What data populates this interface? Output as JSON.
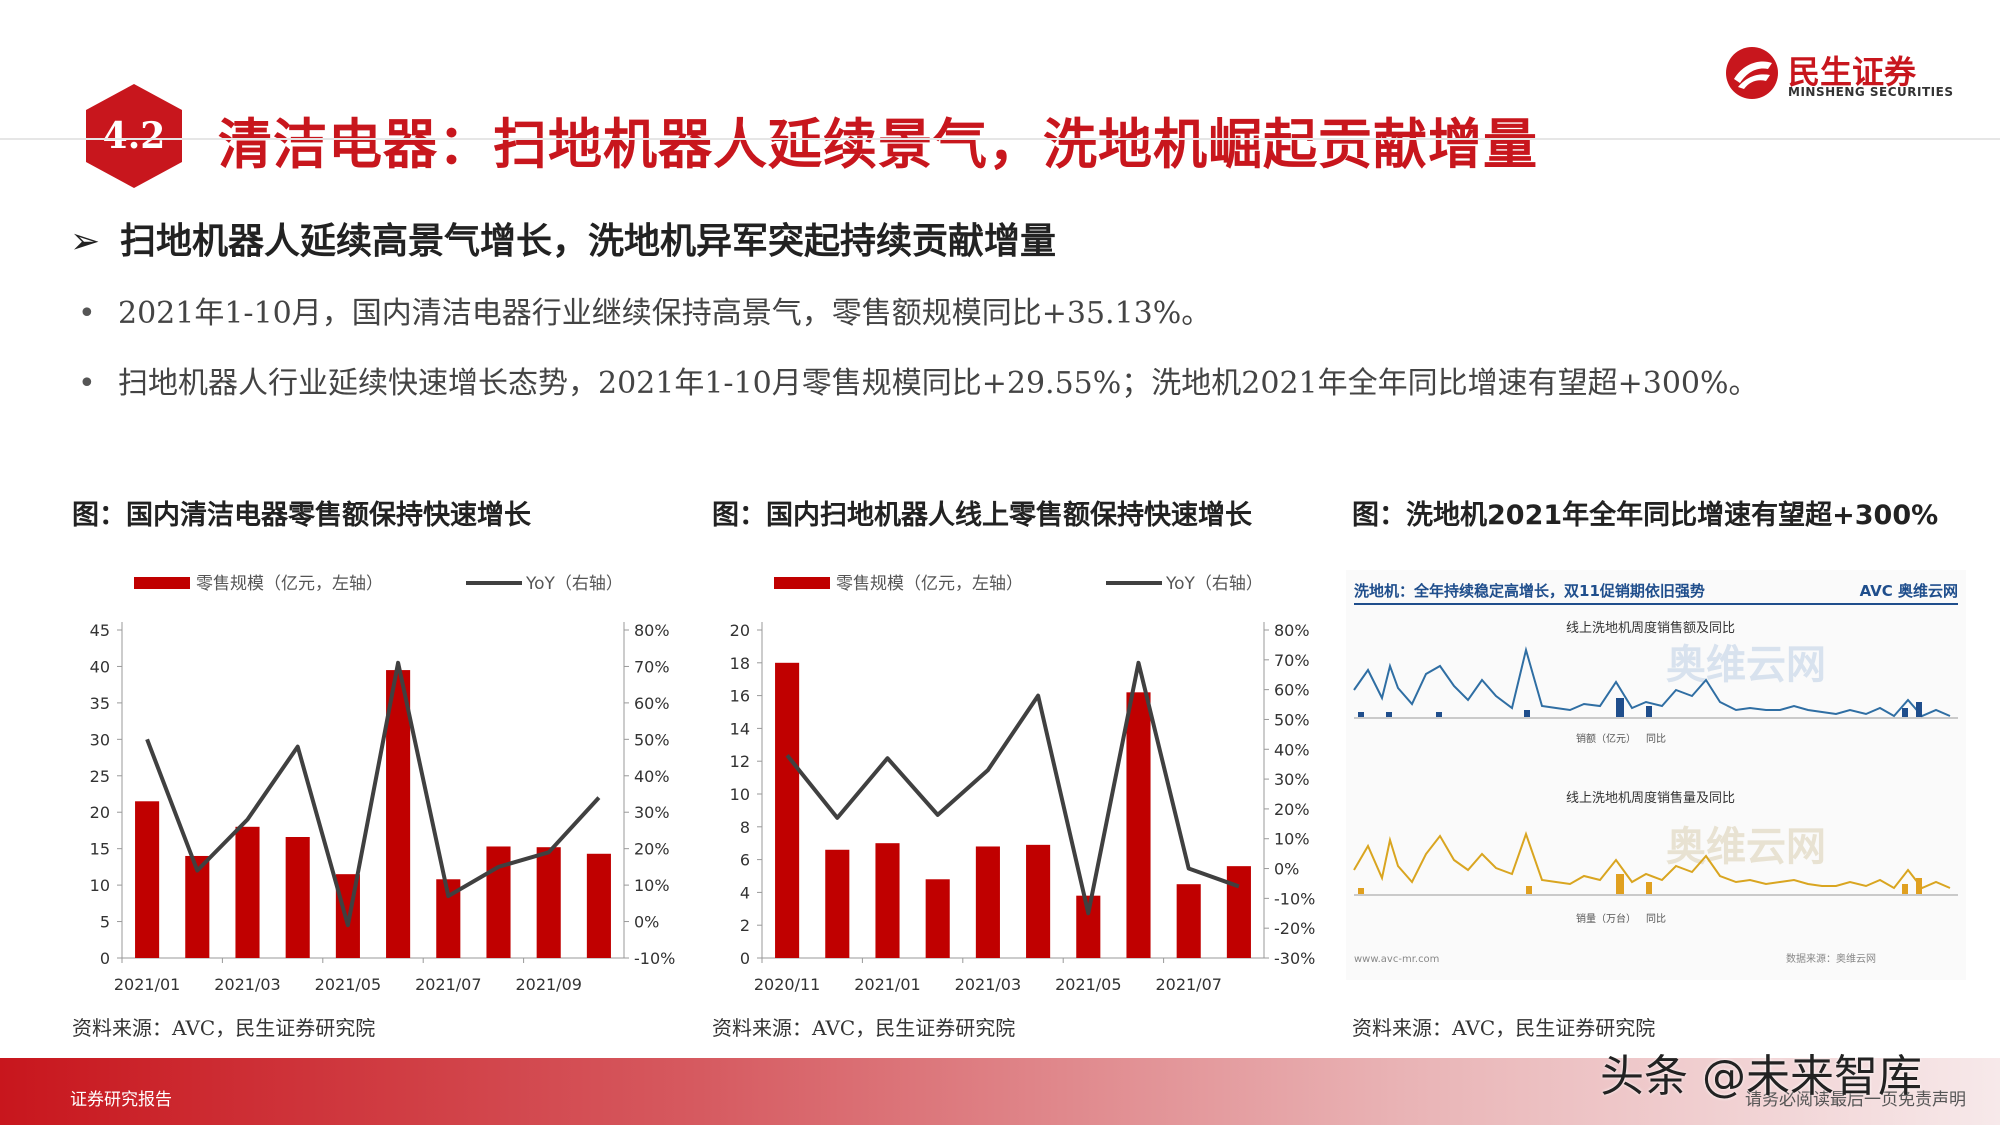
{
  "header": {
    "section_number": "4.2",
    "title": "清洁电器：扫地机器人延续景气，洗地机崛起贡献增量",
    "logo_cn": "民生证券",
    "logo_en": "MINSHENG SECURITIES"
  },
  "subheading": "扫地机器人延续高景气增长，洗地机异军突起持续贡献增量",
  "bullets": [
    "2021年1-10月，国内清洁电器行业继续保持高景气，零售额规模同比+35.13%。",
    "扫地机器人行业延续快速增长态势，2021年1-10月零售规模同比+29.55%；洗地机2021年全年同比增速有望超+300%。"
  ],
  "figures": [
    {
      "caption": "图：国内清洁电器零售额保持快速增长",
      "source": "资料来源：AVC，民生证券研究院"
    },
    {
      "caption": "图：国内扫地机器人线上零售额保持快速增长",
      "source": "资料来源：AVC，民生证券研究院"
    },
    {
      "caption": "图：洗地机2021年全年同比增速有望超+300%",
      "source": "资料来源：AVC，民生证券研究院"
    }
  ],
  "chart_data": [
    {
      "type": "bar",
      "legend": [
        "零售规模（亿元，左轴）",
        "YoY（右轴）"
      ],
      "x_tick_labels": [
        "2021/01",
        "2021/03",
        "2021/05",
        "2021/07",
        "2021/09"
      ],
      "categories": [
        "2021/01",
        "2021/02",
        "2021/03",
        "2021/04",
        "2021/05",
        "2021/06",
        "2021/07",
        "2021/08",
        "2021/09",
        "2021/10"
      ],
      "series": [
        {
          "name": "零售规模（亿元，左轴）",
          "axis": "left",
          "type": "bar",
          "values": [
            21.5,
            14,
            18,
            16.6,
            11.5,
            39.5,
            10.8,
            15.3,
            15.2,
            14.3
          ]
        },
        {
          "name": "YoY（右轴）",
          "axis": "right",
          "type": "line",
          "values": [
            50,
            14,
            28,
            48,
            -1,
            71,
            7,
            15,
            19,
            34
          ]
        }
      ],
      "y_left": {
        "min": 0,
        "max": 45,
        "ticks": [
          0,
          5,
          10,
          15,
          20,
          25,
          30,
          35,
          40,
          45
        ]
      },
      "y_right": {
        "min": -10,
        "max": 80,
        "ticks": [
          "-10%",
          "0%",
          "10%",
          "20%",
          "30%",
          "40%",
          "50%",
          "60%",
          "70%",
          "80%"
        ]
      },
      "colors": {
        "bar": "#c00000",
        "line": "#404040"
      }
    },
    {
      "type": "bar",
      "legend": [
        "零售规模（亿元，左轴）",
        "YoY（右轴）"
      ],
      "x_tick_labels": [
        "2020/11",
        "2021/01",
        "2021/03",
        "2021/05",
        "2021/07"
      ],
      "categories": [
        "2020/11",
        "2020/12",
        "2021/01",
        "2021/02",
        "2021/03",
        "2021/04",
        "2021/05",
        "2021/06",
        "2021/07",
        "2021/08"
      ],
      "series": [
        {
          "name": "零售规模（亿元，左轴）",
          "axis": "left",
          "type": "bar",
          "values": [
            18,
            6.6,
            7,
            4.8,
            6.8,
            6.9,
            3.8,
            16.2,
            4.5,
            5.6
          ]
        },
        {
          "name": "YoY（右轴）",
          "axis": "right",
          "type": "line",
          "values": [
            38,
            17,
            37,
            18,
            33,
            58,
            -15,
            69,
            0,
            -6
          ]
        }
      ],
      "y_left": {
        "min": 0,
        "max": 20,
        "ticks": [
          0,
          2,
          4,
          6,
          8,
          10,
          12,
          14,
          16,
          18,
          20
        ]
      },
      "y_right": {
        "min": -30,
        "max": 80,
        "ticks": [
          "-30%",
          "-20%",
          "-10%",
          "0%",
          "10%",
          "20%",
          "30%",
          "40%",
          "50%",
          "60%",
          "70%",
          "80%"
        ]
      },
      "colors": {
        "bar": "#c00000",
        "line": "#404040"
      }
    }
  ],
  "embedded_image": {
    "title": "洗地机：全年持续稳定高增长，双11促销期依旧强势",
    "brand": "AVC 奥维云网",
    "panel1_title": "线上洗地机周度销售额及同比",
    "panel1_highlight": "销售额",
    "panel2_title": "线上洗地机周度销售量及同比",
    "panel2_highlight": "销售量",
    "panel1_legend": [
      "销额（亿元）",
      "同比"
    ],
    "panel2_legend": [
      "销量（万台）",
      "同比"
    ],
    "source_note": "数据来源：奥维云网",
    "site": "www.avc-mr.com",
    "wm": "奥维云网"
  },
  "footer": {
    "left": "证券研究报告",
    "right": "请务必阅读最后一页免责声明",
    "watermark": "头条 @未来智库"
  }
}
